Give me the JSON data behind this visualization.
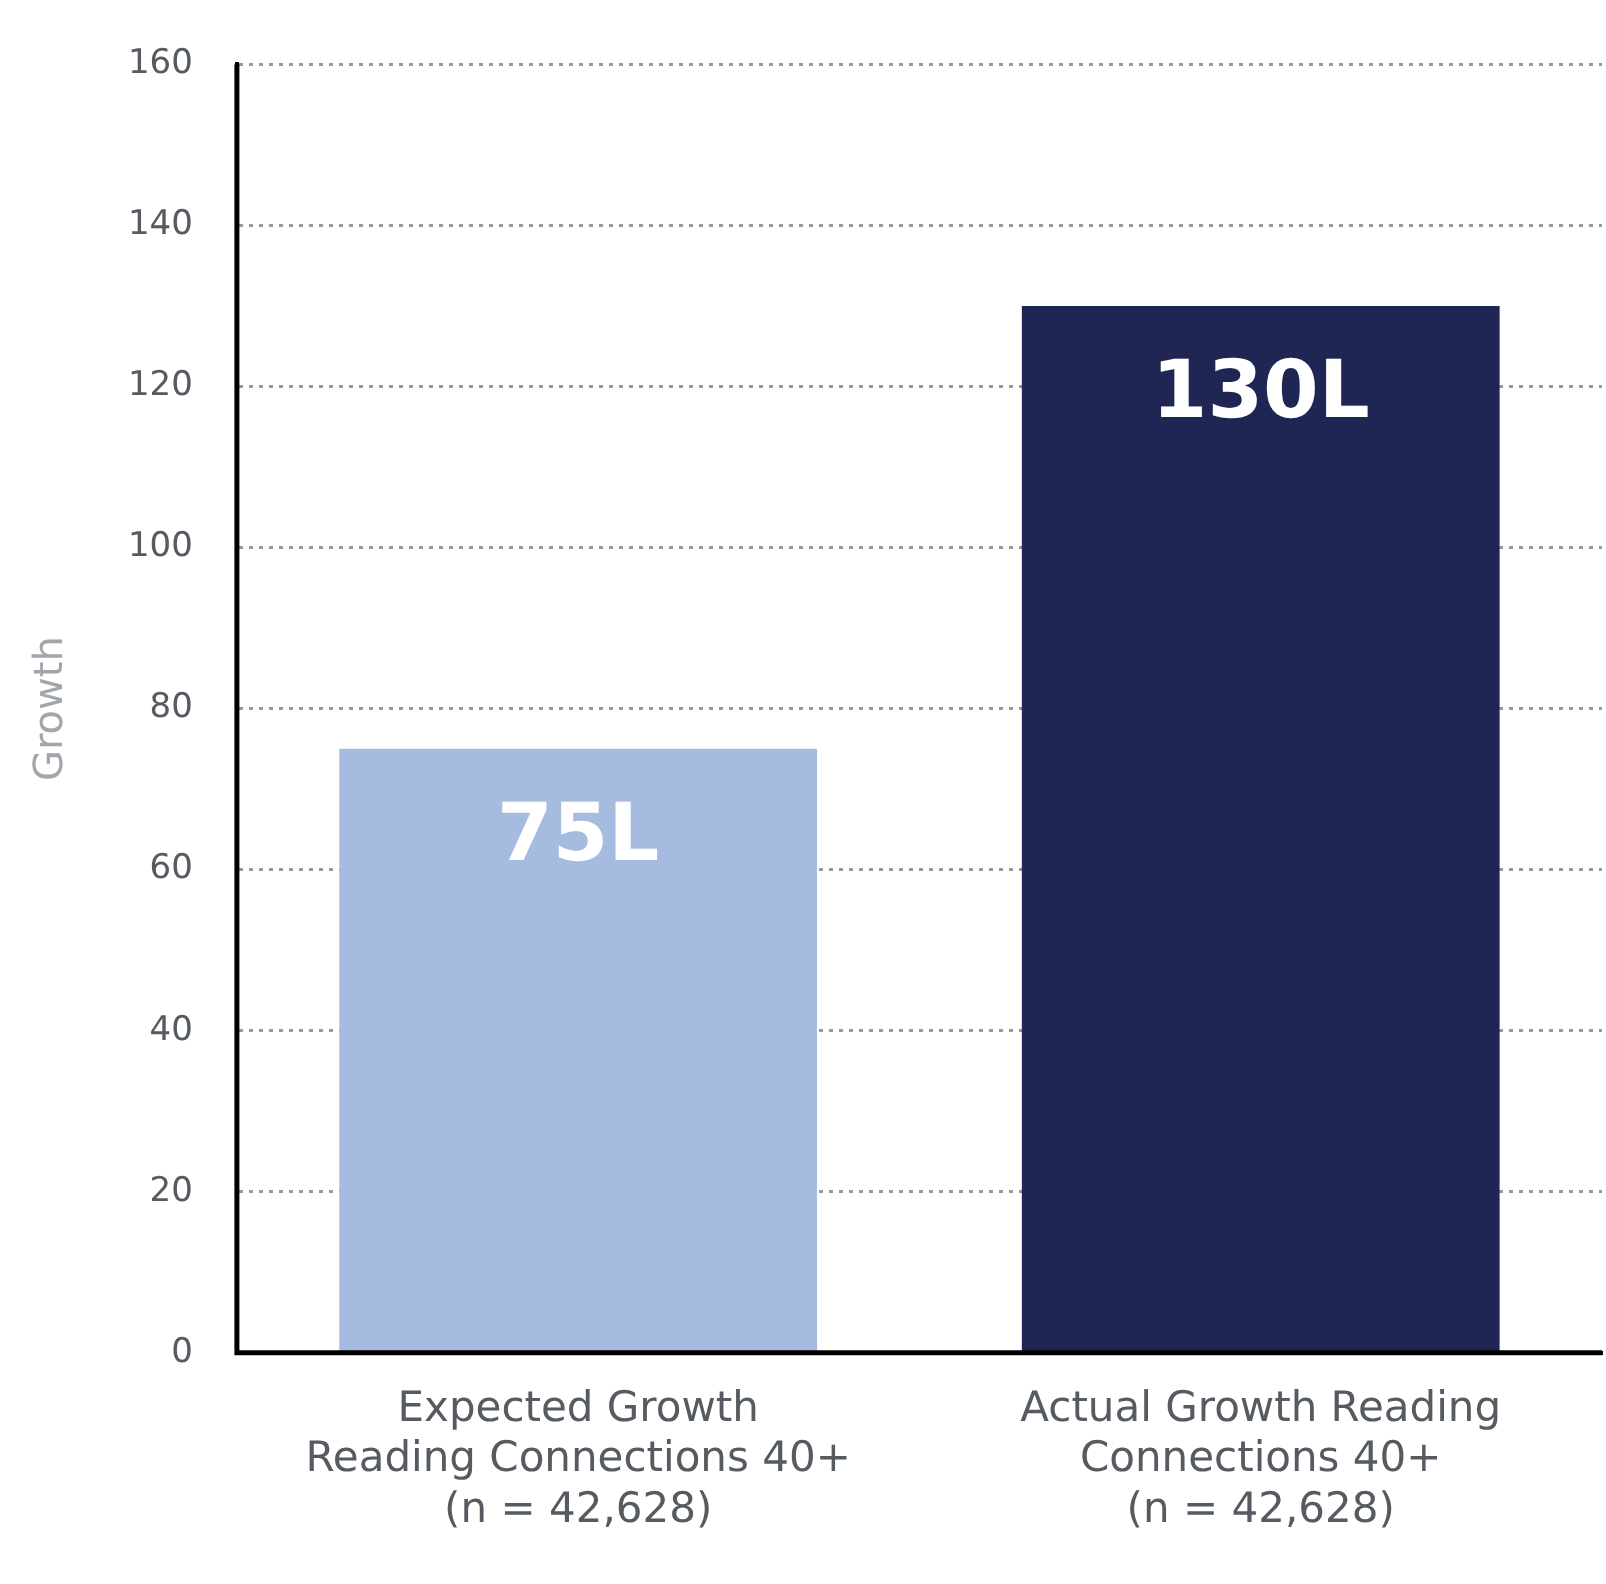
{
  "chart_data": {
    "type": "bar",
    "ylabel": "Growth",
    "categories": [
      "Expected Growth\nReading Connections 40+\n(n = 42,628)",
      "Actual Growth Reading\nConnections 40+\n(n = 42,628)"
    ],
    "values": [
      75,
      130
    ],
    "colors": [
      "#a5bbe0",
      "#1f2654"
    ],
    "value_labels": [
      "75L",
      "130L"
    ],
    "ylim": [
      0,
      160
    ],
    "yticks": [
      0,
      20,
      40,
      60,
      80,
      100,
      120,
      140,
      160
    ],
    "grid": "y",
    "legend": false
  }
}
